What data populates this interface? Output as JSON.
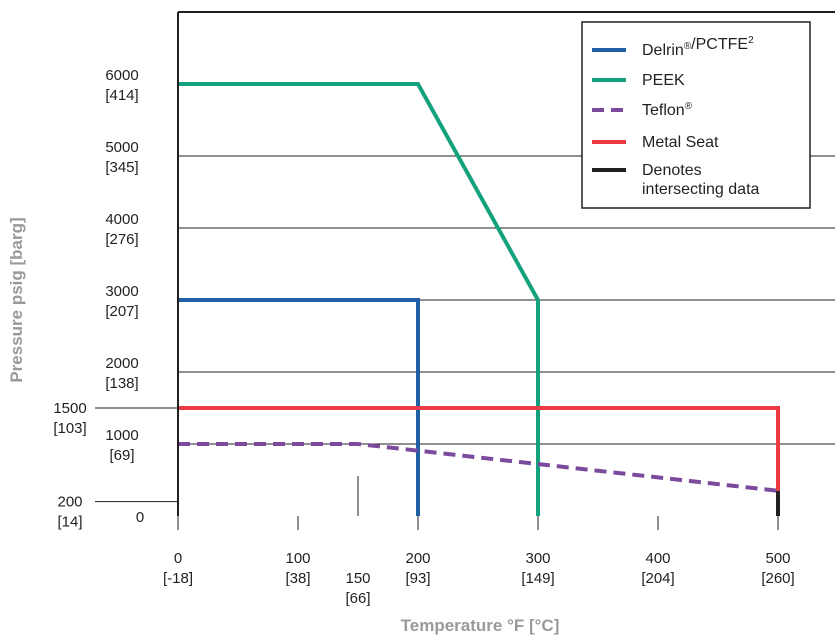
{
  "chart_data": {
    "type": "line",
    "xlabel": "Temperature °F [°C]",
    "ylabel": "Pressure psig [barg]",
    "xlim": [
      0,
      550
    ],
    "ylim": [
      0,
      7100
    ],
    "x_ticks": [
      {
        "v": 0,
        "label": "0",
        "sub": "[-18]"
      },
      {
        "v": 100,
        "label": "100",
        "sub": "[38]"
      },
      {
        "v": 150,
        "label": "150",
        "sub": "[66]"
      },
      {
        "v": 200,
        "label": "200",
        "sub": "[93]"
      },
      {
        "v": 300,
        "label": "300",
        "sub": "[149]"
      },
      {
        "v": 400,
        "label": "400",
        "sub": "[204]"
      },
      {
        "v": 500,
        "label": "500",
        "sub": "[260]"
      }
    ],
    "y_ticks": [
      {
        "v": 0,
        "label": "0",
        "sub": ""
      },
      {
        "v": 200,
        "label": "200",
        "sub": "[14]"
      },
      {
        "v": 1000,
        "label": "1000",
        "sub": "[69]"
      },
      {
        "v": 1500,
        "label": "1500",
        "sub": "[103]"
      },
      {
        "v": 2000,
        "label": "2000",
        "sub": "[138]"
      },
      {
        "v": 3000,
        "label": "3000",
        "sub": "[207]"
      },
      {
        "v": 4000,
        "label": "4000",
        "sub": "[276]"
      },
      {
        "v": 5000,
        "label": "5000",
        "sub": "[345]"
      },
      {
        "v": 6000,
        "label": "6000",
        "sub": "[414]"
      }
    ],
    "grid_y": [
      1000,
      2000,
      3000,
      4000,
      5000
    ],
    "series": [
      {
        "name": "Delrin®/PCTFE²",
        "color": "#1f5fa6",
        "dash": false,
        "x": [
          0,
          200,
          200
        ],
        "y": [
          3000,
          3000,
          0
        ]
      },
      {
        "name": "PEEK",
        "color": "#13a27d",
        "dash": false,
        "x": [
          0,
          200,
          300,
          300
        ],
        "y": [
          6000,
          6000,
          3000,
          0
        ]
      },
      {
        "name": "Teflon®",
        "color": "#7b4a9c",
        "dash": true,
        "x": [
          0,
          150,
          500
        ],
        "y": [
          1000,
          1000,
          350
        ]
      },
      {
        "name": "Metal Seat",
        "color": "#ec3b45",
        "dash": false,
        "x": [
          0,
          500,
          500
        ],
        "y": [
          1500,
          1500,
          350
        ]
      },
      {
        "name": "Denotes intersecting data",
        "color": "#231f20",
        "dash": false,
        "x": [
          500,
          500
        ],
        "y": [
          350,
          0
        ]
      }
    ],
    "legend": {
      "placement": "top-right",
      "items": [
        {
          "text": "Delrin",
          "sup": "®",
          "text2": "/PCTFE",
          "sup2": "2",
          "color": "#1f5fa6",
          "dash": false
        },
        {
          "text": "PEEK",
          "sup": "",
          "text2": "",
          "sup2": "",
          "color": "#13a27d",
          "dash": false
        },
        {
          "text": "Teflon",
          "sup": "®",
          "text2": "",
          "sup2": "",
          "color": "#7b4a9c",
          "dash": true
        },
        {
          "text": "Metal Seat",
          "sup": "",
          "text2": "",
          "sup2": "",
          "color": "#ec3b45",
          "dash": false
        },
        {
          "text": "Denotes",
          "line2": "intersecting data",
          "sup": "",
          "text2": "",
          "sup2": "",
          "color": "#231f20",
          "dash": false
        }
      ]
    }
  }
}
